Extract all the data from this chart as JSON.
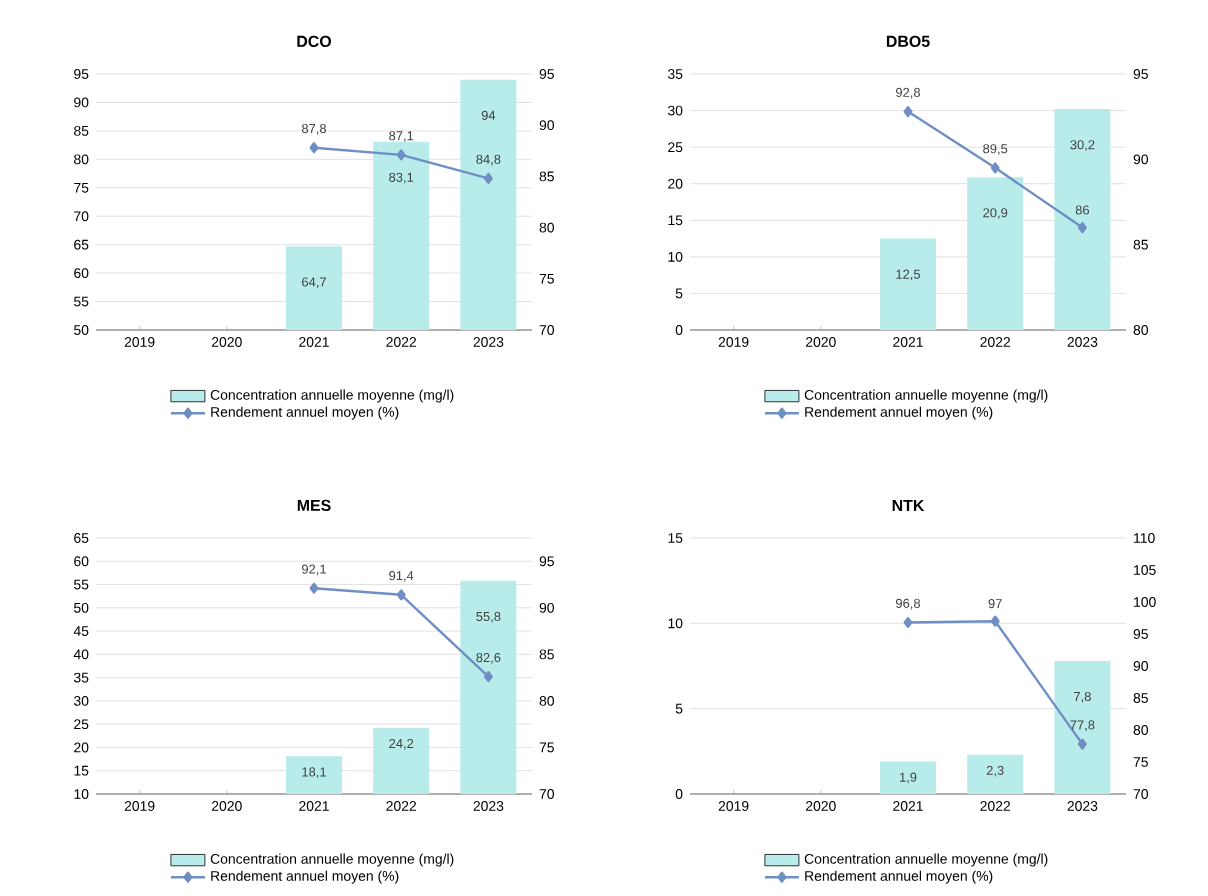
{
  "chart_data": [
    {
      "type": "bar",
      "title": "DCO",
      "categories": [
        "2019",
        "2020",
        "2021",
        "2022",
        "2023"
      ],
      "ylim": [
        50,
        95
      ],
      "yticks": [
        50,
        55,
        60,
        65,
        70,
        75,
        80,
        85,
        90,
        95
      ],
      "y2lim": [
        70,
        95
      ],
      "y2ticks": [
        70,
        75,
        80,
        85,
        90,
        95
      ],
      "grid": "y",
      "legend": "bottom",
      "marker": "diamond",
      "line_style": "solid",
      "series": [
        {
          "name": "Concentration annuelle moyenne (mg/l)",
          "color": "#b8ecea",
          "values": [
            null,
            null,
            64.7,
            83.1,
            94
          ],
          "value_labels": [
            null,
            null,
            "64,7",
            "83,1",
            "94"
          ]
        },
        {
          "type": "line",
          "axis": "y2",
          "name": "Rendement annuel moyen (%)",
          "color": "#6f8fc4",
          "values": [
            null,
            null,
            87.8,
            87.1,
            84.8
          ],
          "value_labels": [
            null,
            null,
            "87,8",
            "87,1",
            "84,8"
          ]
        }
      ]
    },
    {
      "type": "bar",
      "title": "DBO5",
      "categories": [
        "2019",
        "2020",
        "2021",
        "2022",
        "2023"
      ],
      "ylim": [
        0,
        35
      ],
      "yticks": [
        0,
        5,
        10,
        15,
        20,
        25,
        30,
        35
      ],
      "y2lim": [
        80,
        95
      ],
      "y2ticks": [
        80,
        85,
        90,
        95
      ],
      "grid": "y",
      "legend": "bottom",
      "marker": "diamond",
      "line_style": "solid",
      "series": [
        {
          "name": "Concentration annuelle moyenne (mg/l)",
          "color": "#b8ecea",
          "values": [
            null,
            null,
            12.5,
            20.9,
            30.2
          ],
          "value_labels": [
            null,
            null,
            "12,5",
            "20,9",
            "30,2"
          ]
        },
        {
          "type": "line",
          "axis": "y2",
          "name": "Rendement annuel moyen (%)",
          "color": "#6f8fc4",
          "values": [
            null,
            null,
            92.8,
            89.5,
            86
          ],
          "value_labels": [
            null,
            null,
            "92,8",
            "89,5",
            "86"
          ]
        }
      ]
    },
    {
      "type": "bar",
      "title": "MES",
      "categories": [
        "2019",
        "2020",
        "2021",
        "2022",
        "2023"
      ],
      "ylim": [
        10,
        65
      ],
      "yticks": [
        10,
        15,
        20,
        25,
        30,
        35,
        40,
        45,
        50,
        55,
        60,
        65
      ],
      "y2lim": [
        70,
        97.5
      ],
      "y2ticks": [
        70,
        75,
        80,
        85,
        90,
        95
      ],
      "grid": "y",
      "legend": "bottom",
      "marker": "diamond",
      "line_style": "solid",
      "series": [
        {
          "name": "Concentration annuelle moyenne (mg/l)",
          "color": "#b8ecea",
          "values": [
            null,
            null,
            18.1,
            24.2,
            55.8
          ],
          "value_labels": [
            null,
            null,
            "18,1",
            "24,2",
            "55,8"
          ]
        },
        {
          "type": "line",
          "axis": "y2",
          "name": "Rendement annuel moyen (%)",
          "color": "#6f8fc4",
          "values": [
            null,
            null,
            92.1,
            91.4,
            82.6
          ],
          "value_labels": [
            null,
            null,
            "92,1",
            "91,4",
            "82,6"
          ]
        }
      ]
    },
    {
      "type": "bar",
      "title": "NTK",
      "categories": [
        "2019",
        "2020",
        "2021",
        "2022",
        "2023"
      ],
      "ylim": [
        0,
        15
      ],
      "yticks": [
        0,
        5,
        10,
        15
      ],
      "y2lim": [
        70,
        110
      ],
      "y2ticks": [
        70,
        75,
        80,
        85,
        90,
        95,
        100,
        105,
        110
      ],
      "grid": "y",
      "legend": "bottom",
      "marker": "diamond",
      "line_style": "solid",
      "series": [
        {
          "name": "Concentration annuelle moyenne (mg/l)",
          "color": "#b8ecea",
          "values": [
            null,
            null,
            1.9,
            2.3,
            7.8
          ],
          "value_labels": [
            null,
            null,
            "1,9",
            "2,3",
            "7,8"
          ]
        },
        {
          "type": "line",
          "axis": "y2",
          "name": "Rendement annuel moyen (%)",
          "color": "#6f8fc4",
          "values": [
            null,
            null,
            96.8,
            97,
            77.8
          ],
          "value_labels": [
            null,
            null,
            "96,8",
            "97",
            "77,8"
          ]
        }
      ]
    }
  ]
}
